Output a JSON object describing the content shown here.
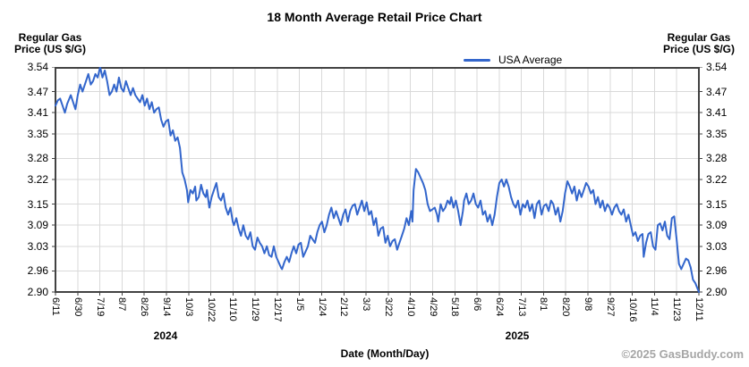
{
  "title": "18 Month Average Retail Price Chart",
  "left_axis_title": [
    "Regular Gas",
    "Price (US $/G)"
  ],
  "right_axis_title": [
    "Regular Gas",
    "Price (US $/G)"
  ],
  "legend": {
    "label": "USA Average",
    "color": "#3366cc"
  },
  "xaxis_label": "Date (Month/Day)",
  "year_labels": {
    "y2024": "2024",
    "y2025": "2025"
  },
  "copyright": "©2025 GasBuddy.com",
  "colors": {
    "line": "#3366cc",
    "grid": "#d9d9d9",
    "frame": "#424242",
    "copyright_text": "#a6a6a6"
  },
  "chart_data": {
    "type": "line",
    "title": "18 Month Average Retail Price Chart",
    "xlabel": "Date (Month/Day)",
    "ylabel": "Regular Gas Price (US $/G)",
    "legend_position": "top",
    "grid": true,
    "ylim": [
      2.9,
      3.54
    ],
    "x_range_days": [
      0,
      548
    ],
    "y_ticks": [
      "3.54",
      "3.47",
      "3.41",
      "3.35",
      "3.28",
      "3.22",
      "3.15",
      "3.09",
      "3.03",
      "2.96",
      "2.90"
    ],
    "x_ticks": [
      "6/11",
      "6/30",
      "7/19",
      "8/7",
      "8/26",
      "9/14",
      "10/3",
      "10/22",
      "11/10",
      "11/29",
      "12/17",
      "1/5",
      "1/24",
      "2/12",
      "3/3",
      "3/22",
      "4/10",
      "4/29",
      "5/18",
      "6/6",
      "6/24",
      "7/13",
      "8/1",
      "8/20",
      "9/8",
      "9/27",
      "10/16",
      "11/4",
      "11/23",
      "12/11"
    ],
    "series": [
      {
        "name": "USA Average",
        "color": "#3366cc",
        "points": [
          [
            0,
            3.43
          ],
          [
            2,
            3.445
          ],
          [
            4,
            3.45
          ],
          [
            6,
            3.43
          ],
          [
            8,
            3.41
          ],
          [
            10,
            3.435
          ],
          [
            13,
            3.46
          ],
          [
            15,
            3.44
          ],
          [
            17,
            3.42
          ],
          [
            19,
            3.46
          ],
          [
            21,
            3.49
          ],
          [
            23,
            3.47
          ],
          [
            26,
            3.5
          ],
          [
            28,
            3.52
          ],
          [
            30,
            3.49
          ],
          [
            32,
            3.5
          ],
          [
            34,
            3.52
          ],
          [
            36,
            3.51
          ],
          [
            38,
            3.54
          ],
          [
            40,
            3.51
          ],
          [
            42,
            3.53
          ],
          [
            44,
            3.5
          ],
          [
            46,
            3.46
          ],
          [
            48,
            3.47
          ],
          [
            50,
            3.49
          ],
          [
            52,
            3.47
          ],
          [
            54,
            3.51
          ],
          [
            56,
            3.48
          ],
          [
            58,
            3.47
          ],
          [
            60,
            3.5
          ],
          [
            62,
            3.48
          ],
          [
            64,
            3.46
          ],
          [
            66,
            3.48
          ],
          [
            68,
            3.46
          ],
          [
            70,
            3.45
          ],
          [
            72,
            3.44
          ],
          [
            74,
            3.46
          ],
          [
            76,
            3.43
          ],
          [
            78,
            3.45
          ],
          [
            80,
            3.42
          ],
          [
            82,
            3.44
          ],
          [
            84,
            3.41
          ],
          [
            86,
            3.42
          ],
          [
            88,
            3.425
          ],
          [
            90,
            3.39
          ],
          [
            92,
            3.37
          ],
          [
            94,
            3.385
          ],
          [
            96,
            3.39
          ],
          [
            98,
            3.345
          ],
          [
            100,
            3.36
          ],
          [
            102,
            3.33
          ],
          [
            104,
            3.34
          ],
          [
            106,
            3.31
          ],
          [
            108,
            3.24
          ],
          [
            110,
            3.22
          ],
          [
            112,
            3.19
          ],
          [
            113,
            3.155
          ],
          [
            115,
            3.19
          ],
          [
            117,
            3.18
          ],
          [
            119,
            3.2
          ],
          [
            120,
            3.16
          ],
          [
            122,
            3.17
          ],
          [
            124,
            3.205
          ],
          [
            126,
            3.18
          ],
          [
            128,
            3.17
          ],
          [
            129,
            3.19
          ],
          [
            131,
            3.14
          ],
          [
            133,
            3.17
          ],
          [
            135,
            3.19
          ],
          [
            137,
            3.21
          ],
          [
            139,
            3.17
          ],
          [
            141,
            3.16
          ],
          [
            143,
            3.18
          ],
          [
            145,
            3.14
          ],
          [
            147,
            3.12
          ],
          [
            149,
            3.14
          ],
          [
            151,
            3.1
          ],
          [
            152,
            3.09
          ],
          [
            154,
            3.11
          ],
          [
            156,
            3.08
          ],
          [
            158,
            3.06
          ],
          [
            160,
            3.09
          ],
          [
            162,
            3.06
          ],
          [
            164,
            3.05
          ],
          [
            166,
            3.07
          ],
          [
            168,
            3.03
          ],
          [
            170,
            3.02
          ],
          [
            172,
            3.055
          ],
          [
            174,
            3.04
          ],
          [
            176,
            3.03
          ],
          [
            178,
            3.01
          ],
          [
            180,
            3.03
          ],
          [
            182,
            3.005
          ],
          [
            184,
            3.0
          ],
          [
            186,
            3.03
          ],
          [
            188,
            3.0
          ],
          [
            190,
            2.985
          ],
          [
            192,
            2.97
          ],
          [
            193,
            2.965
          ],
          [
            195,
            2.985
          ],
          [
            197,
            3.0
          ],
          [
            199,
            2.985
          ],
          [
            201,
            3.01
          ],
          [
            203,
            3.03
          ],
          [
            205,
            3.01
          ],
          [
            207,
            3.035
          ],
          [
            209,
            3.04
          ],
          [
            211,
            3.0
          ],
          [
            213,
            3.015
          ],
          [
            215,
            3.03
          ],
          [
            217,
            3.06
          ],
          [
            219,
            3.05
          ],
          [
            221,
            3.04
          ],
          [
            223,
            3.07
          ],
          [
            225,
            3.09
          ],
          [
            227,
            3.1
          ],
          [
            229,
            3.07
          ],
          [
            231,
            3.09
          ],
          [
            233,
            3.12
          ],
          [
            235,
            3.14
          ],
          [
            237,
            3.11
          ],
          [
            239,
            3.13
          ],
          [
            241,
            3.11
          ],
          [
            243,
            3.09
          ],
          [
            245,
            3.12
          ],
          [
            247,
            3.135
          ],
          [
            249,
            3.1
          ],
          [
            251,
            3.13
          ],
          [
            253,
            3.145
          ],
          [
            255,
            3.15
          ],
          [
            257,
            3.12
          ],
          [
            259,
            3.14
          ],
          [
            261,
            3.16
          ],
          [
            263,
            3.13
          ],
          [
            265,
            3.155
          ],
          [
            267,
            3.12
          ],
          [
            269,
            3.13
          ],
          [
            271,
            3.09
          ],
          [
            273,
            3.11
          ],
          [
            275,
            3.06
          ],
          [
            277,
            3.08
          ],
          [
            279,
            3.085
          ],
          [
            281,
            3.04
          ],
          [
            283,
            3.06
          ],
          [
            285,
            3.03
          ],
          [
            287,
            3.045
          ],
          [
            289,
            3.05
          ],
          [
            291,
            3.02
          ],
          [
            293,
            3.04
          ],
          [
            295,
            3.06
          ],
          [
            297,
            3.08
          ],
          [
            299,
            3.11
          ],
          [
            301,
            3.09
          ],
          [
            303,
            3.13
          ],
          [
            304,
            3.1
          ],
          [
            305,
            3.19
          ],
          [
            307,
            3.25
          ],
          [
            309,
            3.24
          ],
          [
            311,
            3.225
          ],
          [
            313,
            3.21
          ],
          [
            315,
            3.19
          ],
          [
            317,
            3.15
          ],
          [
            319,
            3.13
          ],
          [
            321,
            3.135
          ],
          [
            323,
            3.14
          ],
          [
            325,
            3.12
          ],
          [
            326,
            3.1
          ],
          [
            328,
            3.15
          ],
          [
            330,
            3.13
          ],
          [
            332,
            3.14
          ],
          [
            334,
            3.16
          ],
          [
            336,
            3.15
          ],
          [
            337,
            3.17
          ],
          [
            339,
            3.14
          ],
          [
            341,
            3.16
          ],
          [
            343,
            3.13
          ],
          [
            345,
            3.09
          ],
          [
            347,
            3.13
          ],
          [
            348,
            3.16
          ],
          [
            350,
            3.18
          ],
          [
            352,
            3.15
          ],
          [
            354,
            3.16
          ],
          [
            356,
            3.18
          ],
          [
            358,
            3.15
          ],
          [
            360,
            3.14
          ],
          [
            362,
            3.16
          ],
          [
            364,
            3.12
          ],
          [
            366,
            3.13
          ],
          [
            368,
            3.1
          ],
          [
            370,
            3.12
          ],
          [
            372,
            3.09
          ],
          [
            374,
            3.12
          ],
          [
            376,
            3.17
          ],
          [
            378,
            3.21
          ],
          [
            380,
            3.22
          ],
          [
            382,
            3.2
          ],
          [
            384,
            3.22
          ],
          [
            386,
            3.2
          ],
          [
            388,
            3.17
          ],
          [
            390,
            3.15
          ],
          [
            392,
            3.14
          ],
          [
            394,
            3.16
          ],
          [
            396,
            3.12
          ],
          [
            398,
            3.15
          ],
          [
            400,
            3.14
          ],
          [
            402,
            3.16
          ],
          [
            404,
            3.13
          ],
          [
            406,
            3.15
          ],
          [
            408,
            3.11
          ],
          [
            410,
            3.15
          ],
          [
            412,
            3.16
          ],
          [
            414,
            3.12
          ],
          [
            416,
            3.145
          ],
          [
            418,
            3.15
          ],
          [
            420,
            3.13
          ],
          [
            422,
            3.16
          ],
          [
            424,
            3.15
          ],
          [
            426,
            3.12
          ],
          [
            428,
            3.14
          ],
          [
            430,
            3.1
          ],
          [
            432,
            3.13
          ],
          [
            434,
            3.18
          ],
          [
            436,
            3.215
          ],
          [
            438,
            3.2
          ],
          [
            440,
            3.18
          ],
          [
            442,
            3.2
          ],
          [
            444,
            3.16
          ],
          [
            446,
            3.19
          ],
          [
            448,
            3.17
          ],
          [
            450,
            3.19
          ],
          [
            452,
            3.21
          ],
          [
            454,
            3.2
          ],
          [
            456,
            3.18
          ],
          [
            458,
            3.19
          ],
          [
            460,
            3.15
          ],
          [
            462,
            3.17
          ],
          [
            464,
            3.14
          ],
          [
            466,
            3.16
          ],
          [
            468,
            3.13
          ],
          [
            470,
            3.15
          ],
          [
            472,
            3.14
          ],
          [
            474,
            3.12
          ],
          [
            476,
            3.14
          ],
          [
            478,
            3.15
          ],
          [
            480,
            3.13
          ],
          [
            482,
            3.12
          ],
          [
            484,
            3.135
          ],
          [
            486,
            3.1
          ],
          [
            488,
            3.12
          ],
          [
            490,
            3.09
          ],
          [
            492,
            3.06
          ],
          [
            494,
            3.07
          ],
          [
            496,
            3.045
          ],
          [
            498,
            3.06
          ],
          [
            500,
            3.065
          ],
          [
            501,
            3.0
          ],
          [
            503,
            3.04
          ],
          [
            505,
            3.065
          ],
          [
            507,
            3.07
          ],
          [
            509,
            3.03
          ],
          [
            511,
            3.02
          ],
          [
            513,
            3.09
          ],
          [
            515,
            3.095
          ],
          [
            517,
            3.075
          ],
          [
            519,
            3.1
          ],
          [
            521,
            3.06
          ],
          [
            523,
            3.05
          ],
          [
            525,
            3.11
          ],
          [
            527,
            3.115
          ],
          [
            529,
            3.05
          ],
          [
            531,
            2.98
          ],
          [
            533,
            2.965
          ],
          [
            535,
            2.98
          ],
          [
            537,
            2.995
          ],
          [
            539,
            2.99
          ],
          [
            541,
            2.97
          ],
          [
            543,
            2.935
          ],
          [
            545,
            2.925
          ],
          [
            548,
            2.9
          ]
        ]
      }
    ]
  }
}
